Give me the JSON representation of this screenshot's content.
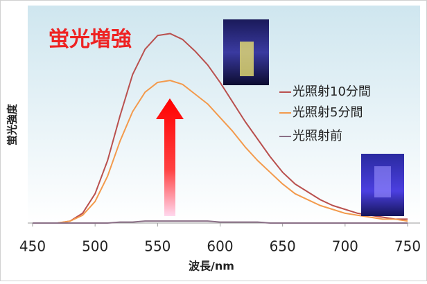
{
  "chart_data": {
    "type": "line",
    "annotation": "蛍光増強",
    "x_label": "波長/nm",
    "y_label": "蛍光強度",
    "x": [
      450,
      460,
      470,
      480,
      490,
      500,
      510,
      520,
      530,
      540,
      550,
      560,
      570,
      580,
      590,
      600,
      610,
      620,
      630,
      640,
      650,
      660,
      670,
      680,
      690,
      700,
      710,
      720,
      730,
      740,
      750
    ],
    "series": [
      {
        "name": "光照射10分間",
        "color": "#b9504e",
        "values": [
          0,
          0,
          0,
          1,
          5,
          15,
          32,
          55,
          76,
          89,
          96,
          97,
          94,
          88,
          81,
          72,
          62,
          52,
          43,
          34,
          26,
          20,
          16,
          12,
          9,
          7,
          5,
          4,
          3,
          2,
          2
        ]
      },
      {
        "name": "光照射5分間",
        "color": "#f39a4c",
        "values": [
          0,
          0,
          0,
          1,
          4,
          11,
          24,
          42,
          57,
          67,
          72,
          73,
          71,
          66,
          61,
          54,
          47,
          39,
          32,
          26,
          20,
          15,
          12,
          9,
          7,
          5,
          4,
          3,
          2,
          2,
          1
        ]
      },
      {
        "name": "光照射前",
        "color": "#8a6f86",
        "values": [
          0,
          0,
          0,
          0,
          0,
          0,
          0,
          0.5,
          0.5,
          1,
          1,
          1,
          1,
          1,
          1,
          0.5,
          0.5,
          0.5,
          0.5,
          0,
          0,
          0,
          0,
          0,
          0,
          0,
          0,
          0,
          0,
          0,
          0
        ]
      }
    ],
    "xlim": [
      450,
      750
    ],
    "xticks": [
      450,
      500,
      550,
      600,
      650,
      700,
      750
    ],
    "ylim": [
      0,
      100
    ]
  }
}
